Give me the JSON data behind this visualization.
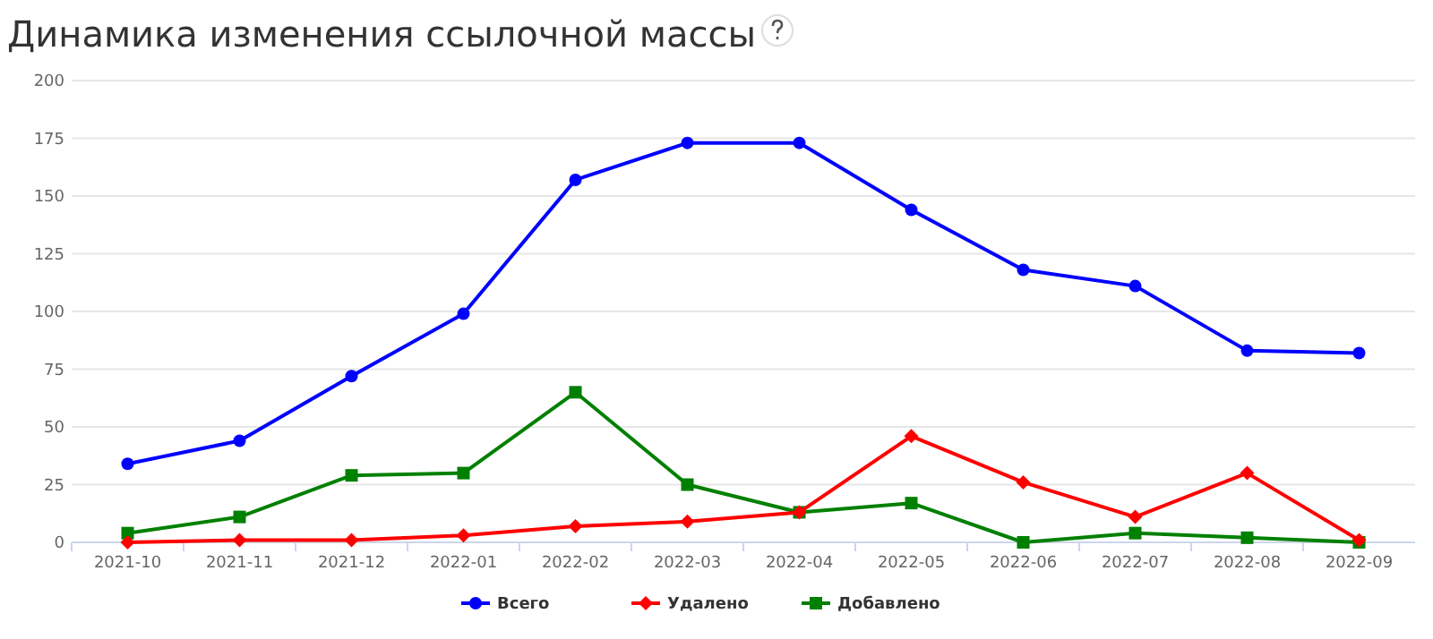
{
  "chart_data": {
    "type": "line",
    "title": "Динамика изменения ссылочной массы",
    "categories": [
      "2021-10",
      "2021-11",
      "2021-12",
      "2022-01",
      "2022-02",
      "2022-03",
      "2022-04",
      "2022-05",
      "2022-06",
      "2022-07",
      "2022-08",
      "2022-09"
    ],
    "series": [
      {
        "name": "Всего",
        "color": "#0000ff",
        "marker": "circle",
        "values": [
          34,
          44,
          72,
          99,
          157,
          173,
          173,
          144,
          118,
          111,
          83,
          82
        ]
      },
      {
        "name": "Удалено",
        "color": "#ff0000",
        "marker": "diamond",
        "values": [
          0,
          1,
          1,
          3,
          7,
          9,
          13,
          46,
          26,
          11,
          30,
          1
        ]
      },
      {
        "name": "Добавлено",
        "color": "#008000",
        "marker": "square",
        "values": [
          4,
          11,
          29,
          30,
          65,
          25,
          13,
          17,
          0,
          4,
          2,
          0
        ]
      }
    ],
    "ylim": [
      0,
      200
    ],
    "yticks": [
      0,
      25,
      50,
      75,
      100,
      125,
      150,
      175,
      200
    ],
    "grid": "y",
    "legend": "bottom",
    "line_style": "solid"
  }
}
